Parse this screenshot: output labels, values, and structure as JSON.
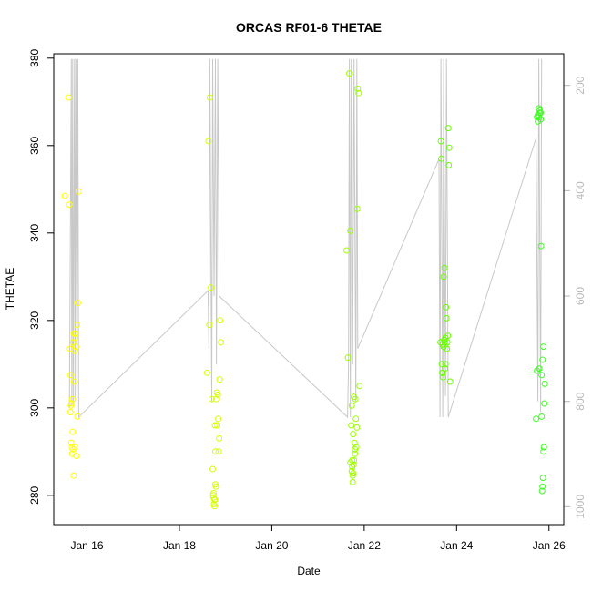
{
  "chart_data": {
    "type": "scatter",
    "title": "ORCAS RF01-6 THETAE",
    "xlabel": "Date",
    "ylabel": "THETAE",
    "x_ticks": [
      {
        "label": "Jan 16",
        "day": 16
      },
      {
        "label": "Jan 18",
        "day": 18
      },
      {
        "label": "Jan 20",
        "day": 20
      },
      {
        "label": "Jan 22",
        "day": 22
      },
      {
        "label": "Jan 24",
        "day": 24
      },
      {
        "label": "Jan 26",
        "day": 26
      }
    ],
    "xlim": [
      15.28,
      26.32
    ],
    "ylim": [
      273.3,
      381
    ],
    "y_ticks": [
      280,
      300,
      320,
      340,
      360,
      380
    ],
    "right_axis": {
      "ticks": [
        200,
        400,
        600,
        800,
        1000
      ],
      "ylim": [
        1034,
        140
      ],
      "color": "#b8b8b8"
    },
    "point_colors": [
      "#ffff00",
      "#d7ff00",
      "#9dff00",
      "#6aff00",
      "#3cff20",
      "#15f050"
    ],
    "pressure_trace_color": "#c8c8c8",
    "series": [
      {
        "x": [
          15.52,
          15.6,
          15.62,
          15.63,
          15.64,
          15.65,
          15.66,
          15.67,
          15.68,
          15.69,
          15.7,
          15.71,
          15.72,
          15.73,
          15.74,
          15.75,
          15.76,
          15.77,
          15.78,
          15.79,
          15.8,
          15.82,
          15.64,
          15.66,
          15.7,
          15.68,
          15.72,
          15.74
        ],
        "y": [
          348.5,
          371,
          346.5,
          313.5,
          307.5,
          300.5,
          292,
          291,
          302,
          294.5,
          290.5,
          284.5,
          317,
          313,
          316,
          317,
          314,
          289,
          319,
          298,
          324,
          349.5,
          299,
          301,
          315,
          289.5,
          306,
          291
        ]
      },
      {
        "x": [
          18.6,
          18.63,
          18.66,
          18.68,
          18.7,
          18.72,
          18.73,
          18.74,
          18.75,
          18.76,
          18.77,
          18.78,
          18.79,
          18.8,
          18.81,
          18.82,
          18.83,
          18.84,
          18.85,
          18.86,
          18.87,
          18.88,
          18.9,
          18.65,
          18.74,
          18.76,
          18.77,
          18.78
        ],
        "y": [
          308,
          361,
          371,
          327.5,
          302,
          286,
          280,
          279.5,
          278,
          277.5,
          279,
          290,
          282,
          302,
          303.5,
          296,
          303,
          297.5,
          290,
          293,
          306.5,
          320,
          315,
          319,
          280.5,
          279,
          296,
          282.5
        ]
      },
      {
        "x": [
          21.62,
          21.65,
          21.68,
          21.7,
          21.72,
          21.73,
          21.74,
          21.75,
          21.76,
          21.77,
          21.78,
          21.79,
          21.8,
          21.81,
          21.82,
          21.83,
          21.84,
          21.85,
          21.86,
          21.88,
          21.7,
          21.74,
          21.76,
          21.78,
          21.8,
          21.9,
          21.73,
          21.75
        ],
        "y": [
          336,
          311.5,
          376.5,
          340.5,
          296,
          300.5,
          288,
          283,
          285,
          287,
          302.5,
          292,
          289.5,
          302,
          297.5,
          291,
          295.5,
          345.5,
          373,
          372,
          287.5,
          286.5,
          294,
          288,
          290.5,
          305,
          285.5,
          284.5
        ]
      },
      {
        "x": [
          23.65,
          23.66,
          23.67,
          23.68,
          23.69,
          23.7,
          23.71,
          23.72,
          23.73,
          23.74,
          23.75,
          23.76,
          23.77,
          23.78,
          23.79,
          23.8,
          23.81,
          23.82,
          23.83,
          23.84,
          23.86,
          23.7,
          23.72,
          23.74,
          23.76
        ],
        "y": [
          315,
          361,
          357,
          310,
          308,
          314.5,
          307,
          330,
          315.5,
          332,
          309,
          316,
          323,
          320.5,
          313.5,
          315,
          316.5,
          364,
          355.5,
          359.5,
          306,
          308,
          314,
          315,
          310
        ]
      },
      {
        "x": [
          25.72,
          25.74,
          25.76,
          25.78,
          25.8,
          25.82,
          25.83,
          25.84,
          25.85,
          25.86,
          25.87,
          25.88,
          25.89,
          25.9,
          25.91,
          25.76,
          25.78,
          25.8,
          25.82,
          25.84,
          25.86,
          25.88,
          25.74,
          25.79
        ],
        "y": [
          297.5,
          308.5,
          367,
          366.5,
          368,
          367.5,
          337,
          298,
          281,
          282,
          284,
          290,
          291,
          301,
          305.5,
          365.5,
          368.5,
          367.5,
          366,
          307.5,
          311,
          314,
          366.5,
          309
        ]
      }
    ]
  }
}
